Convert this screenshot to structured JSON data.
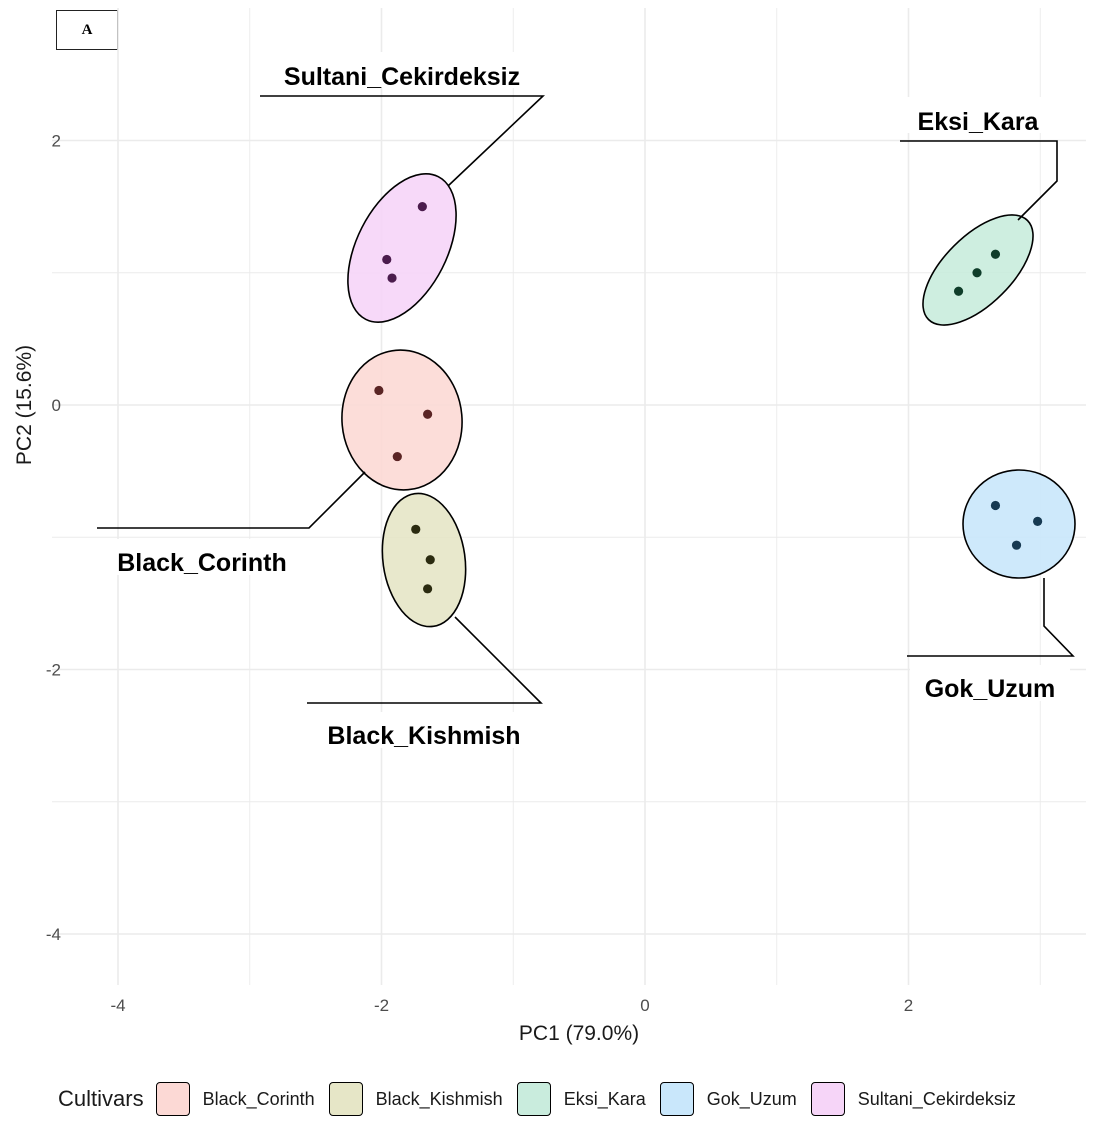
{
  "panel_tag": "A",
  "legend": {
    "title": "Cultivars",
    "items": [
      {
        "label": "Black_Corinth",
        "color": "#fcd9d5"
      },
      {
        "label": "Black_Kishmish",
        "color": "#e6e6c7"
      },
      {
        "label": "Eksi_Kara",
        "color": "#c9ecdd"
      },
      {
        "label": "Gok_Uzum",
        "color": "#c9e7fb"
      },
      {
        "label": "Sultani_Cekirdeksiz",
        "color": "#f6d5f8"
      }
    ]
  },
  "chart_data": {
    "type": "scatter",
    "xlabel": "PC1 (79.0%)",
    "ylabel": "PC2 (15.6%)",
    "xlim": [
      -4.3,
      3.35
    ],
    "ylim": [
      -4.4,
      3.0
    ],
    "x_ticks": [
      -4,
      -2,
      0,
      2
    ],
    "y_ticks": [
      2,
      0,
      -2,
      -4
    ],
    "grid": true,
    "legend_position": "bottom",
    "series": [
      {
        "name": "Black_Corinth",
        "color": "#fcd9d5",
        "point_color": "#5a2424",
        "points": [
          [
            -2.02,
            0.11
          ],
          [
            -1.65,
            -0.07
          ],
          [
            -1.88,
            -0.39
          ]
        ]
      },
      {
        "name": "Black_Kishmish",
        "color": "#e6e6c7",
        "point_color": "#2b2b10",
        "points": [
          [
            -1.74,
            -0.94
          ],
          [
            -1.63,
            -1.17
          ],
          [
            -1.65,
            -1.39
          ]
        ]
      },
      {
        "name": "Eksi_Kara",
        "color": "#c9ecdd",
        "point_color": "#0f3d2a",
        "points": [
          [
            2.38,
            0.86
          ],
          [
            2.52,
            1.0
          ],
          [
            2.66,
            1.14
          ]
        ]
      },
      {
        "name": "Gok_Uzum",
        "color": "#c9e7fb",
        "point_color": "#173a52",
        "points": [
          [
            2.66,
            -0.76
          ],
          [
            2.82,
            -1.06
          ],
          [
            2.98,
            -0.88
          ]
        ]
      },
      {
        "name": "Sultani_Cekirdeksiz",
        "color": "#f6d5f8",
        "point_color": "#4b1c4d",
        "points": [
          [
            -1.69,
            1.5
          ],
          [
            -1.96,
            1.1
          ],
          [
            -1.92,
            0.96
          ]
        ]
      }
    ]
  }
}
